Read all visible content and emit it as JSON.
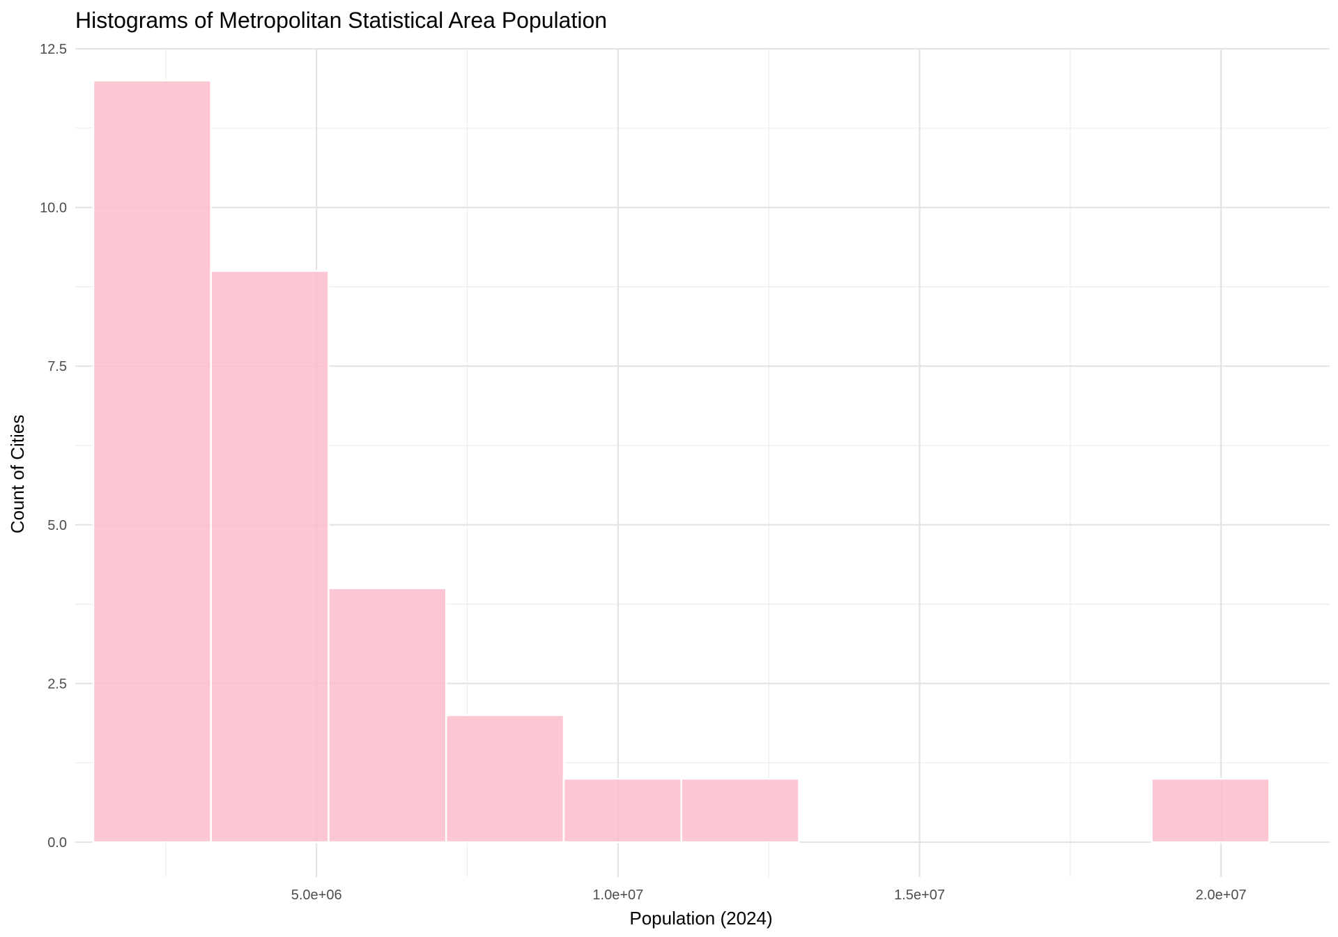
{
  "chart_data": {
    "type": "bar",
    "title": "Histograms of Metropolitan Statistical Area Population",
    "xlabel": "Population (2024)",
    "ylabel": "Count of Cities",
    "xlim": [
      1000000,
      21800000
    ],
    "ylim": [
      0,
      12.5
    ],
    "x_ticks": [
      5000000,
      10000000,
      15000000,
      20000000
    ],
    "x_tick_labels": [
      "5.0e+06",
      "1.0e+07",
      "1.5e+07",
      "2.0e+07"
    ],
    "y_ticks": [
      0,
      2.5,
      5,
      7.5,
      10,
      12.5
    ],
    "y_tick_labels": [
      "0.0",
      "2.5",
      "5.0",
      "7.5",
      "10.0",
      "12.5"
    ],
    "bin_width": 1950000,
    "bins": [
      {
        "x0": 1300000,
        "x1": 3250000,
        "count": 12
      },
      {
        "x0": 3250000,
        "x1": 5200000,
        "count": 9
      },
      {
        "x0": 5200000,
        "x1": 7150000,
        "count": 4
      },
      {
        "x0": 7150000,
        "x1": 9100000,
        "count": 2
      },
      {
        "x0": 9100000,
        "x1": 11050000,
        "count": 1
      },
      {
        "x0": 11050000,
        "x1": 13000000,
        "count": 1
      },
      {
        "x0": 13000000,
        "x1": 14950000,
        "count": 0
      },
      {
        "x0": 14950000,
        "x1": 16900000,
        "count": 0
      },
      {
        "x0": 16900000,
        "x1": 18850000,
        "count": 0
      },
      {
        "x0": 18850000,
        "x1": 20800000,
        "count": 1
      }
    ],
    "grid": true,
    "bar_color": "#fbbccb",
    "legend": "none"
  }
}
